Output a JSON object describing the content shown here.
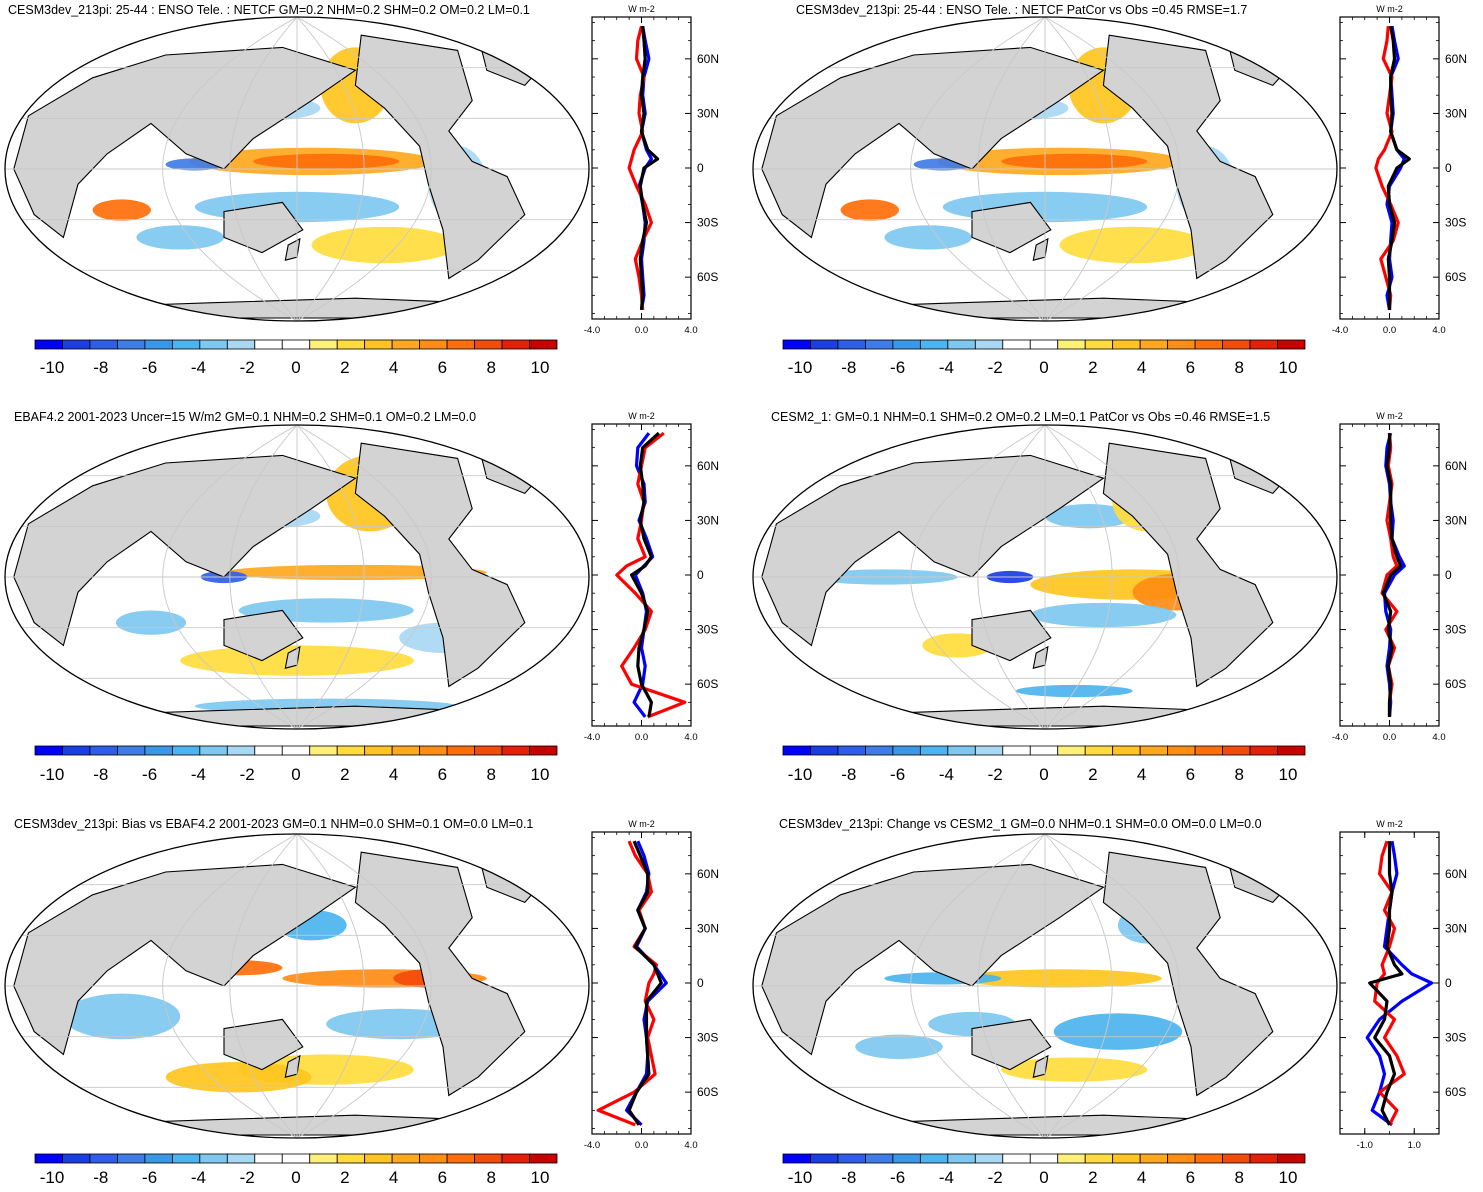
{
  "chart_data": [
    {
      "type": "map_with_zonal_profile",
      "title": "CESM3dev_213pi: 25-44 : ENSO Tele. : NETCF GM=0.2 NHM=0.2 SHM=0.2 OM=0.2 LM=0.1",
      "colorbar_ticks": [
        "-10",
        "-8",
        "-6",
        "-4",
        "-2",
        "0",
        "2",
        "4",
        "6",
        "8",
        "10"
      ],
      "profile": {
        "units": "W m-2",
        "lat_labels": [
          "60N",
          "30N",
          "0",
          "30S",
          "60S"
        ],
        "lat_values": [
          60,
          30,
          0,
          -30,
          -60
        ],
        "xlim": [
          -4.0,
          4.0
        ],
        "x_tick_labels": [
          "-4.0",
          "0.0",
          "4.0"
        ],
        "series": [
          {
            "name": "blue",
            "lat": [
              78,
              70,
              60,
              50,
              40,
              30,
              20,
              10,
              5,
              0,
              -10,
              -20,
              -30,
              -40,
              -50,
              -60,
              -70,
              -78
            ],
            "values": [
              0.1,
              0.3,
              0.6,
              0.2,
              0.1,
              0.3,
              0.0,
              0.4,
              0.8,
              0.3,
              -0.2,
              0.1,
              0.3,
              0.2,
              0.0,
              0.1,
              0.2,
              0.0
            ]
          },
          {
            "name": "red",
            "lat": [
              78,
              70,
              60,
              50,
              40,
              30,
              20,
              10,
              5,
              0,
              -10,
              -20,
              -30,
              -40,
              -50,
              -60,
              -70,
              -78
            ],
            "values": [
              0.0,
              -0.3,
              -0.4,
              0.2,
              -0.1,
              -0.2,
              0.1,
              -0.6,
              -0.8,
              -1.0,
              -0.4,
              0.3,
              0.8,
              0.1,
              -0.5,
              -0.2,
              0.0,
              0.1
            ]
          },
          {
            "name": "black",
            "lat": [
              78,
              70,
              60,
              50,
              40,
              30,
              20,
              10,
              5,
              0,
              -10,
              -20,
              -30,
              -40,
              -50,
              -60,
              -70,
              -78
            ],
            "values": [
              0.1,
              0.2,
              0.3,
              0.1,
              0.0,
              0.2,
              0.0,
              0.5,
              1.3,
              0.2,
              -0.1,
              0.1,
              0.4,
              0.1,
              -0.1,
              0.0,
              0.1,
              0.0
            ]
          }
        ]
      }
    },
    {
      "type": "map_with_zonal_profile",
      "title": "CESM3dev_213pi: 25-44 : ENSO Tele. : NETCF PatCor vs Obs =0.45 RMSE=1.7",
      "colorbar_ticks": [
        "-10",
        "-8",
        "-6",
        "-4",
        "-2",
        "0",
        "2",
        "4",
        "6",
        "8",
        "10"
      ],
      "profile": {
        "units": "W m-2",
        "lat_labels": [
          "60N",
          "30N",
          "0",
          "30S",
          "60S"
        ],
        "lat_values": [
          60,
          30,
          0,
          -30,
          -60
        ],
        "xlim": [
          -4.0,
          4.0
        ],
        "x_tick_labels": [
          "-4.0",
          "0.0",
          "4.0"
        ],
        "series": [
          {
            "name": "blue",
            "lat": [
              78,
              70,
              60,
              50,
              40,
              30,
              20,
              10,
              5,
              0,
              -10,
              -20,
              -30,
              -40,
              -50,
              -60,
              -70,
              -78
            ],
            "values": [
              0.2,
              0.4,
              0.7,
              0.1,
              0.2,
              0.3,
              0.1,
              0.6,
              1.2,
              0.9,
              0.0,
              -0.2,
              0.2,
              0.1,
              0.0,
              0.2,
              -0.2,
              0.0
            ]
          },
          {
            "name": "red",
            "lat": [
              78,
              70,
              60,
              50,
              40,
              30,
              20,
              10,
              5,
              0,
              -10,
              -20,
              -30,
              -40,
              -50,
              -60,
              -70,
              -78
            ],
            "values": [
              -0.1,
              -0.2,
              -0.5,
              0.2,
              0.0,
              -0.2,
              0.2,
              -0.4,
              -0.9,
              -1.1,
              -0.6,
              0.1,
              0.7,
              0.3,
              -0.7,
              -0.3,
              0.1,
              0.0
            ]
          },
          {
            "name": "black",
            "lat": [
              78,
              70,
              60,
              50,
              40,
              30,
              20,
              10,
              5,
              0,
              -10,
              -20,
              -30,
              -40,
              -50,
              -60,
              -70,
              -78
            ],
            "values": [
              0.1,
              0.3,
              0.4,
              0.1,
              0.1,
              0.2,
              0.1,
              0.6,
              1.6,
              0.6,
              -0.1,
              0.0,
              0.4,
              0.2,
              -0.1,
              0.0,
              0.0,
              0.0
            ]
          }
        ]
      }
    },
    {
      "type": "map_with_zonal_profile",
      "title": "EBAF4.2 2001-2023 Uncer=15 W/m2 GM=0.1 NHM=0.2 SHM=0.1 OM=0.2 LM=0.0",
      "colorbar_ticks": [
        "-10",
        "-8",
        "-6",
        "-4",
        "-2",
        "0",
        "2",
        "4",
        "6",
        "8",
        "10"
      ],
      "profile": {
        "units": "W m-2",
        "lat_labels": [
          "60N",
          "30N",
          "0",
          "30S",
          "60S"
        ],
        "lat_values": [
          60,
          30,
          0,
          -30,
          -60
        ],
        "xlim": [
          -4.0,
          4.0
        ],
        "x_tick_labels": [
          "-4.0",
          "0.0",
          "4.0"
        ],
        "series": [
          {
            "name": "blue",
            "lat": [
              78,
              70,
              60,
              50,
              40,
              30,
              20,
              10,
              5,
              0,
              -10,
              -20,
              -30,
              -40,
              -50,
              -60,
              -70,
              -78
            ],
            "values": [
              0.6,
              -0.3,
              -0.4,
              0.2,
              0.3,
              -0.2,
              0.4,
              0.9,
              0.2,
              -0.5,
              0.1,
              0.4,
              0.2,
              0.0,
              0.3,
              0.1,
              -0.6,
              0.3
            ]
          },
          {
            "name": "red",
            "lat": [
              78,
              70,
              60,
              50,
              40,
              30,
              20,
              10,
              5,
              0,
              -10,
              -20,
              -30,
              -40,
              -50,
              -60,
              -70,
              -78
            ],
            "values": [
              1.8,
              0.3,
              0.0,
              -0.3,
              0.2,
              0.0,
              -0.3,
              0.3,
              -1.2,
              -2.0,
              -0.5,
              0.8,
              0.3,
              -0.6,
              -1.6,
              -0.8,
              3.5,
              0.5
            ]
          },
          {
            "name": "black",
            "lat": [
              78,
              70,
              60,
              50,
              40,
              30,
              20,
              10,
              5,
              0,
              -10,
              -20,
              -30,
              -40,
              -50,
              -60,
              -70,
              -78
            ],
            "values": [
              1.4,
              0.1,
              -0.1,
              0.1,
              0.2,
              -0.1,
              0.2,
              0.8,
              0.3,
              -0.8,
              0.0,
              0.5,
              0.2,
              -0.2,
              -0.3,
              0.0,
              0.8,
              0.6
            ]
          }
        ]
      }
    },
    {
      "type": "map_with_zonal_profile",
      "title": "CESM2_1: GM=0.1 NHM=0.1 SHM=0.2 OM=0.2 LM=0.1 PatCor vs Obs =0.46 RMSE=1.5",
      "colorbar_ticks": [
        "-10",
        "-8",
        "-6",
        "-4",
        "-2",
        "0",
        "2",
        "4",
        "6",
        "8",
        "10"
      ],
      "profile": {
        "units": "W m-2",
        "lat_labels": [
          "60N",
          "30N",
          "0",
          "30S",
          "60S"
        ],
        "lat_values": [
          60,
          30,
          0,
          -30,
          -60
        ],
        "xlim": [
          -4.0,
          4.0
        ],
        "x_tick_labels": [
          "-4.0",
          "0.0",
          "4.0"
        ],
        "series": [
          {
            "name": "blue",
            "lat": [
              78,
              70,
              60,
              50,
              40,
              30,
              20,
              10,
              5,
              0,
              -10,
              -20,
              -30,
              -40,
              -50,
              -60,
              -70,
              -78
            ],
            "values": [
              0.1,
              -0.2,
              -0.3,
              0.0,
              0.1,
              0.3,
              0.2,
              0.8,
              1.2,
              0.4,
              -0.4,
              -0.3,
              0.1,
              0.0,
              -0.2,
              0.0,
              0.1,
              0.0
            ]
          },
          {
            "name": "red",
            "lat": [
              78,
              70,
              60,
              50,
              40,
              30,
              20,
              10,
              5,
              0,
              -10,
              -20,
              -30,
              -40,
              -50,
              -60,
              -70,
              -78
            ],
            "values": [
              0.0,
              0.1,
              -0.1,
              0.2,
              0.0,
              -0.2,
              0.1,
              0.3,
              0.6,
              -0.2,
              -0.6,
              0.6,
              -0.3,
              0.4,
              -0.1,
              0.2,
              0.0,
              0.0
            ]
          },
          {
            "name": "black",
            "lat": [
              78,
              70,
              60,
              50,
              40,
              30,
              20,
              10,
              5,
              0,
              -10,
              -20,
              -30,
              -40,
              -50,
              -60,
              -70,
              -78
            ],
            "values": [
              0.0,
              0.0,
              -0.2,
              0.1,
              0.1,
              0.1,
              0.2,
              0.6,
              0.9,
              0.1,
              -0.5,
              0.1,
              -0.1,
              0.2,
              -0.1,
              0.1,
              0.0,
              0.0
            ]
          }
        ]
      }
    },
    {
      "type": "map_with_zonal_profile",
      "title": "CESM3dev_213pi: Bias vs EBAF4.2 2001-2023 GM=0.1 NHM=0.0 SHM=0.1 OM=0.0 LM=0.1",
      "colorbar_ticks": [
        "-10",
        "-8",
        "-6",
        "-4",
        "-2",
        "0",
        "2",
        "4",
        "6",
        "8",
        "10"
      ],
      "profile": {
        "units": "W m-2",
        "lat_labels": [
          "60N",
          "30N",
          "0",
          "30S",
          "60S"
        ],
        "lat_values": [
          60,
          30,
          0,
          -30,
          -60
        ],
        "xlim": [
          -4.0,
          4.0
        ],
        "x_tick_labels": [
          "-4.0",
          "0.0",
          "4.0"
        ],
        "series": [
          {
            "name": "blue",
            "lat": [
              78,
              70,
              60,
              50,
              40,
              30,
              20,
              10,
              5,
              0,
              -10,
              -20,
              -30,
              -40,
              -50,
              -60,
              -70,
              -78
            ],
            "values": [
              -0.3,
              0.2,
              0.6,
              0.4,
              -0.3,
              0.3,
              -0.4,
              1.0,
              1.5,
              2.0,
              0.5,
              0.2,
              0.4,
              0.5,
              0.4,
              -0.4,
              -1.2,
              0.0
            ]
          },
          {
            "name": "red",
            "lat": [
              78,
              70,
              60,
              50,
              40,
              30,
              20,
              10,
              5,
              0,
              -10,
              -20,
              -30,
              -40,
              -50,
              -60,
              -70,
              -78
            ],
            "values": [
              -1.0,
              -0.5,
              0.5,
              0.8,
              -0.2,
              0.3,
              -0.6,
              1.2,
              1.0,
              0.6,
              0.3,
              1.0,
              0.5,
              0.8,
              1.1,
              -0.6,
              -3.5,
              -0.5
            ]
          },
          {
            "name": "black",
            "lat": [
              78,
              70,
              60,
              50,
              40,
              30,
              20,
              10,
              5,
              0,
              -10,
              -20,
              -30,
              -40,
              -50,
              -60,
              -70,
              -78
            ],
            "values": [
              -0.6,
              -0.1,
              0.5,
              0.5,
              -0.3,
              0.3,
              -0.5,
              1.0,
              1.3,
              1.6,
              0.4,
              0.4,
              0.4,
              0.5,
              0.6,
              -0.4,
              -1.0,
              -0.2
            ]
          }
        ]
      }
    },
    {
      "type": "map_with_zonal_profile",
      "title": "CESM3dev_213pi: Change vs CESM2_1 GM=0.0 NHM=0.1 SHM=0.0 OM=0.0 LM=0.0",
      "colorbar_ticks": [
        "-10",
        "-8",
        "-6",
        "-4",
        "-2",
        "0",
        "2",
        "4",
        "6",
        "8",
        "10"
      ],
      "profile": {
        "units": "W m-2",
        "lat_labels": [
          "60N",
          "30N",
          "0",
          "30S",
          "60S"
        ],
        "lat_values": [
          60,
          30,
          0,
          -30,
          -60
        ],
        "xlim": [
          -2.0,
          2.0
        ],
        "x_tick_labels": [
          "-1.0",
          "1.0"
        ],
        "x_tick_values": [
          -1.0,
          1.0
        ],
        "series": [
          {
            "name": "blue",
            "lat": [
              78,
              70,
              60,
              50,
              40,
              30,
              20,
              10,
              5,
              0,
              -10,
              -20,
              -30,
              -40,
              -50,
              -60,
              -70,
              -78
            ],
            "values": [
              0.1,
              0.2,
              0.3,
              0.1,
              0.0,
              -0.1,
              -0.2,
              0.5,
              0.9,
              1.7,
              0.5,
              -0.4,
              -0.9,
              -0.4,
              -0.2,
              -0.4,
              -0.7,
              0.1
            ]
          },
          {
            "name": "red",
            "lat": [
              78,
              70,
              60,
              50,
              40,
              30,
              20,
              10,
              5,
              0,
              -10,
              -20,
              -30,
              -40,
              -50,
              -60,
              -70,
              -78
            ],
            "values": [
              -0.1,
              -0.3,
              -0.4,
              0.1,
              -0.2,
              0.2,
              0.0,
              -0.3,
              -0.2,
              -0.5,
              -0.6,
              0.2,
              -0.2,
              0.3,
              0.6,
              -0.4,
              0.3,
              0.0
            ]
          },
          {
            "name": "black",
            "lat": [
              78,
              70,
              60,
              50,
              40,
              30,
              20,
              10,
              5,
              0,
              -10,
              -20,
              -30,
              -40,
              -50,
              -60,
              -70,
              -78
            ],
            "values": [
              0.0,
              0.0,
              0.0,
              0.1,
              0.0,
              0.0,
              -0.1,
              0.2,
              0.5,
              -0.8,
              -0.1,
              -0.2,
              -0.6,
              0.0,
              0.2,
              -0.1,
              -0.3,
              0.0
            ]
          }
        ]
      }
    }
  ],
  "palette": [
    "#0000ff",
    "#1a3de6",
    "#2e5ee8",
    "#3f7ce8",
    "#3a98e8",
    "#4cb4ee",
    "#7ec8f0",
    "#a9d8f3",
    "#ffffff",
    "#ffffff",
    "#fff07a",
    "#ffdc3c",
    "#ffc41e",
    "#ffa81e",
    "#ff8c14",
    "#ff6e0a",
    "#f44a0a",
    "#e61e0a",
    "#c80000"
  ],
  "land_color": "#d3d3d3",
  "line_colors": {
    "blue": "#0000ff",
    "red": "#ff0000",
    "black": "#000000"
  }
}
